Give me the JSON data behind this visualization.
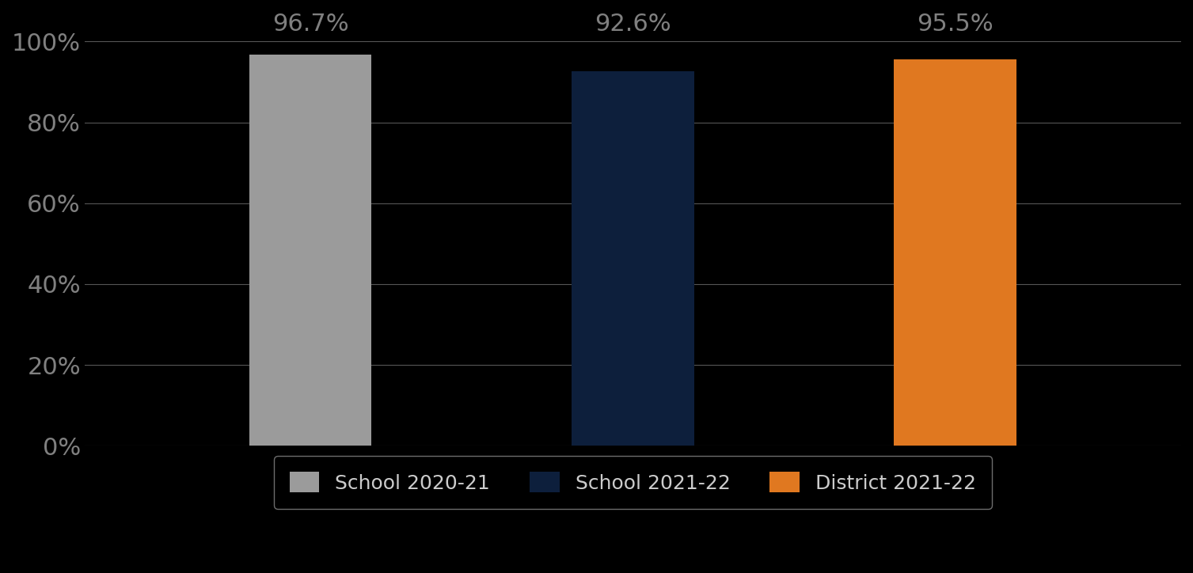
{
  "categories": [
    "School 2020-21",
    "School 2021-22",
    "District 2021-22"
  ],
  "values": [
    96.7,
    92.6,
    95.5
  ],
  "bar_colors": [
    "#9b9b9b",
    "#0d1f3c",
    "#e07820"
  ],
  "ylim": [
    0,
    100
  ],
  "yticks": [
    0,
    20,
    40,
    60,
    80,
    100
  ],
  "ytick_labels": [
    "0%",
    "20%",
    "40%",
    "60%",
    "80%",
    "100%"
  ],
  "background_color": "#000000",
  "tick_label_color": "#808080",
  "bar_label_color": "#808080",
  "grid_color": "#555555",
  "bar_label_fontsize": 22,
  "tick_fontsize": 22,
  "legend_fontsize": 18,
  "legend_box_color": "#000000",
  "legend_edge_color": "#888888",
  "bar_width": 0.38,
  "x_positions": [
    1,
    2,
    3
  ],
  "xlim": [
    0.3,
    3.7
  ]
}
